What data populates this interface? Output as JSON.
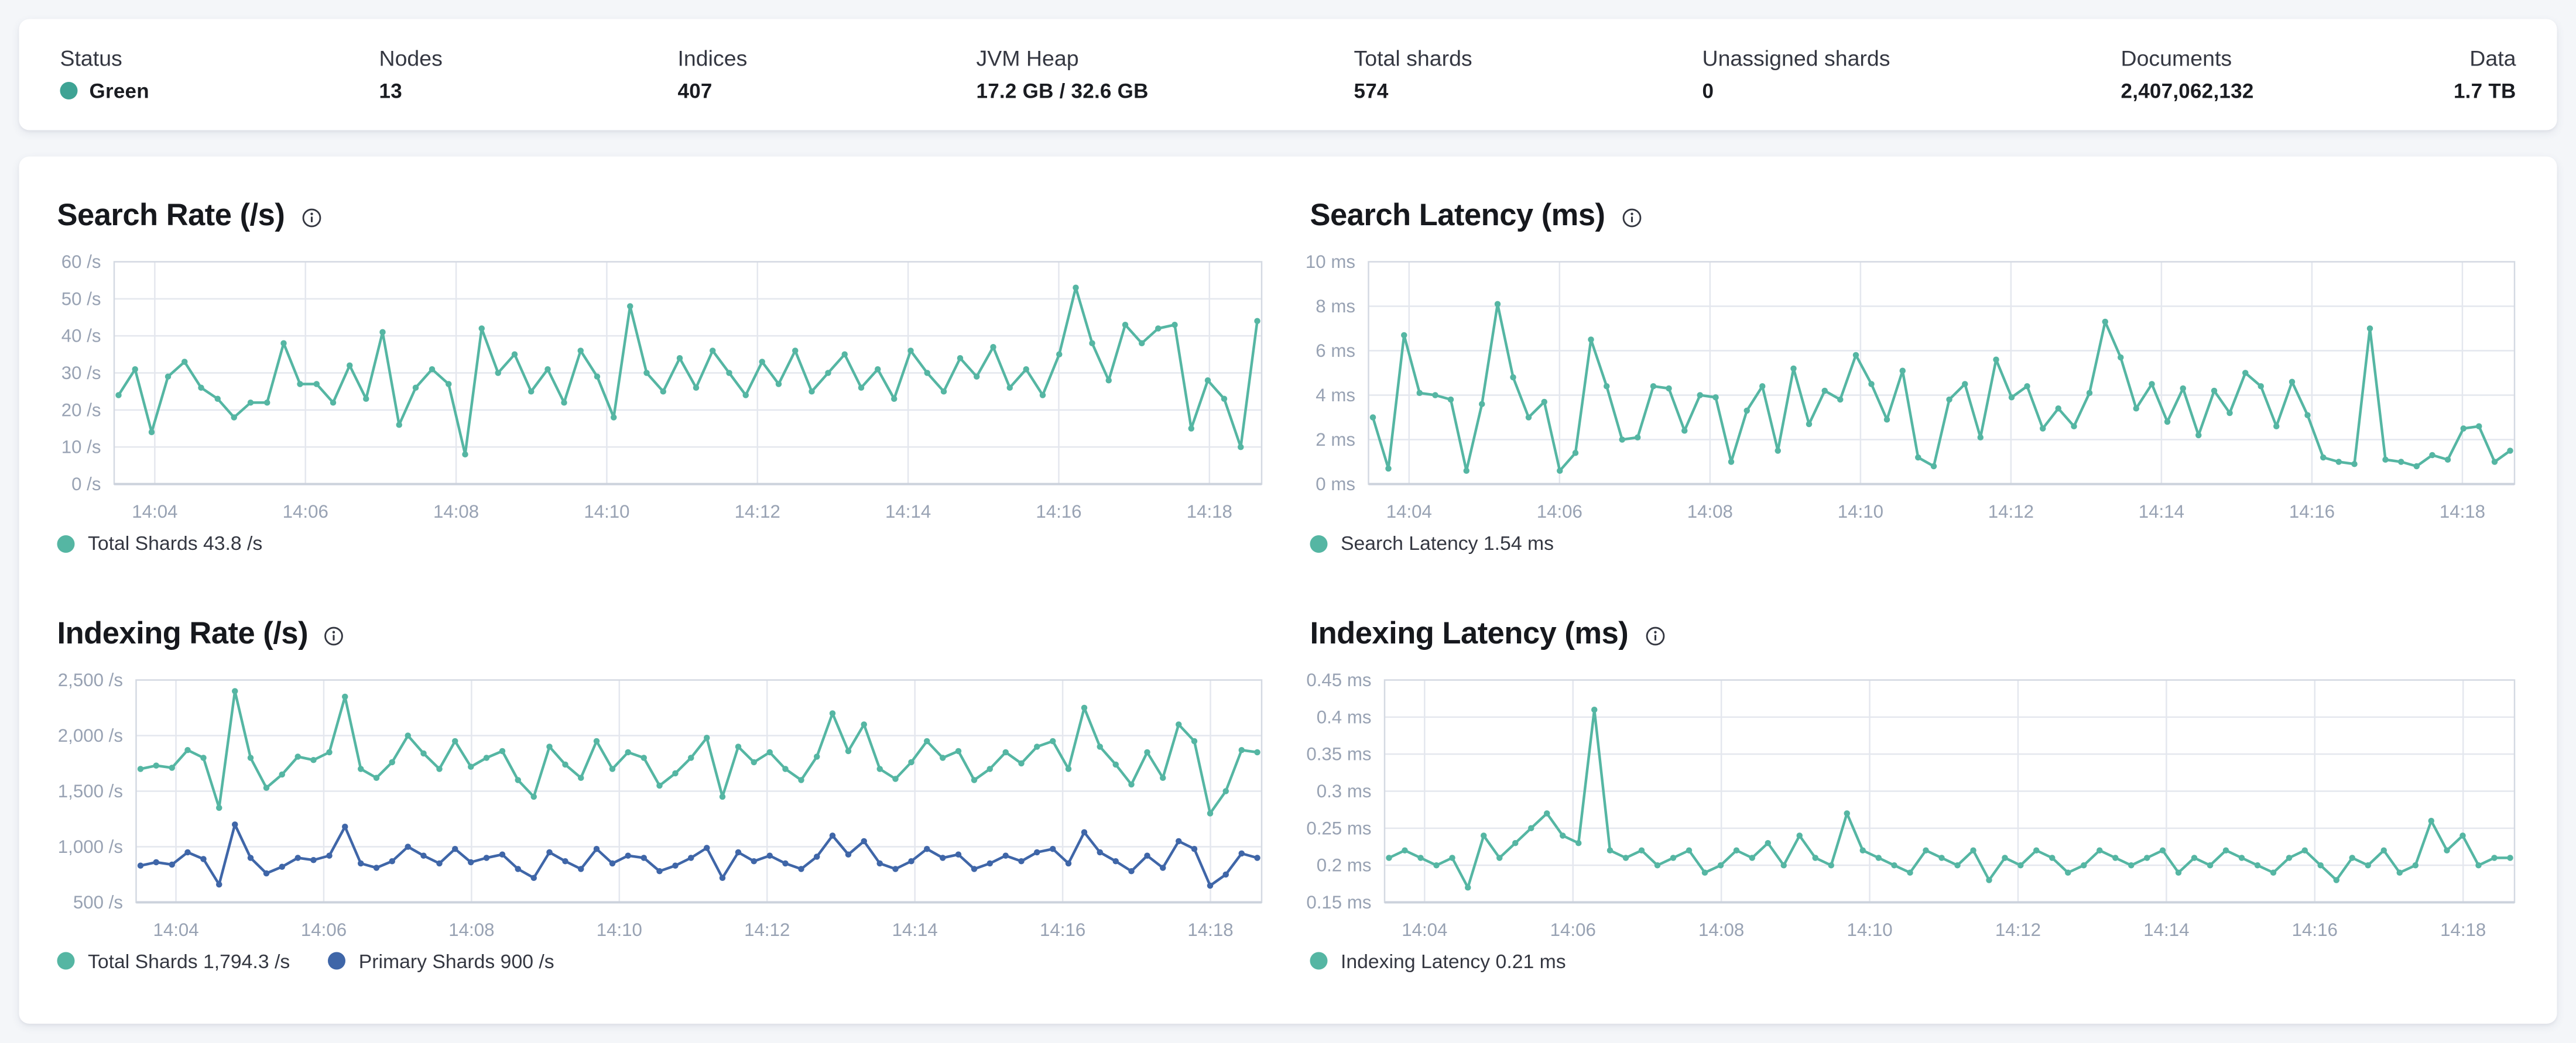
{
  "topbar": {
    "metrics": [
      {
        "label": "Status",
        "value": "Green",
        "dot_color": "#3ea394"
      },
      {
        "label": "Nodes",
        "value": "13"
      },
      {
        "label": "Indices",
        "value": "407"
      },
      {
        "label": "JVM Heap",
        "value": "17.2 GB / 32.6 GB"
      },
      {
        "label": "Total shards",
        "value": "574"
      },
      {
        "label": "Unassigned shards",
        "value": "0"
      },
      {
        "label": "Documents",
        "value": "2,407,062,132"
      },
      {
        "label": "Data",
        "value": "1.7 TB"
      }
    ]
  },
  "colors": {
    "teal": "#55b6a3",
    "blue": "#3f66a8",
    "status_green": "#3ea394",
    "grid": "#e4e7ee",
    "plot_border": "#d4d9e2",
    "axis_text": "#98a2b3"
  },
  "chart_data": [
    {
      "type": "line",
      "title": "Search Rate (/s)",
      "x_ticks": [
        "14:04",
        "14:06",
        "14:08",
        "14:10",
        "14:12",
        "14:14",
        "14:16",
        "14:18"
      ],
      "y_tick_values": [
        0,
        10,
        20,
        30,
        40,
        50,
        60
      ],
      "y_tick_labels": [
        "0 /s",
        "10 /s",
        "20 /s",
        "30 /s",
        "40 /s",
        "50 /s",
        "60 /s"
      ],
      "ymin": 0,
      "ymax": 60,
      "series": [
        {
          "name": "Total Shards",
          "color": "#55b6a3",
          "values": [
            24,
            31,
            14,
            29,
            33,
            26,
            23,
            18,
            22,
            22,
            38,
            27,
            27,
            22,
            32,
            23,
            41,
            16,
            26,
            31,
            27,
            8,
            42,
            30,
            35,
            25,
            31,
            22,
            36,
            29,
            18,
            48,
            30,
            25,
            34,
            26,
            36,
            30,
            24,
            33,
            27,
            36,
            25,
            30,
            35,
            26,
            31,
            23,
            36,
            30,
            25,
            34,
            29,
            37,
            26,
            31,
            24,
            35,
            53,
            38,
            28,
            43,
            38,
            42,
            43,
            15,
            28,
            23,
            10,
            44
          ]
        }
      ],
      "legend": [
        {
          "label": "Total Shards 43.8 /s",
          "color": "#55b6a3"
        }
      ]
    },
    {
      "type": "line",
      "title": "Search Latency (ms)",
      "x_ticks": [
        "14:04",
        "14:06",
        "14:08",
        "14:10",
        "14:12",
        "14:14",
        "14:16",
        "14:18"
      ],
      "y_tick_values": [
        0,
        2,
        4,
        6,
        8,
        10
      ],
      "y_tick_labels": [
        "0 ms",
        "2 ms",
        "4 ms",
        "6 ms",
        "8 ms",
        "10 ms"
      ],
      "ymin": 0,
      "ymax": 10,
      "series": [
        {
          "name": "Search Latency",
          "color": "#55b6a3",
          "values": [
            3,
            0.7,
            6.7,
            4.1,
            4,
            3.8,
            0.6,
            3.6,
            8.1,
            4.8,
            3,
            3.7,
            0.6,
            1.4,
            6.5,
            4.4,
            2,
            2.1,
            4.4,
            4.3,
            2.4,
            4,
            3.9,
            1,
            3.3,
            4.4,
            1.5,
            5.2,
            2.7,
            4.2,
            3.8,
            5.8,
            4.5,
            2.9,
            5.1,
            1.2,
            0.8,
            3.8,
            4.5,
            2.1,
            5.6,
            3.9,
            4.4,
            2.5,
            3.4,
            2.6,
            4.1,
            7.3,
            5.7,
            3.4,
            4.5,
            2.8,
            4.3,
            2.2,
            4.2,
            3.2,
            5,
            4.4,
            2.6,
            4.6,
            3.1,
            1.2,
            1,
            0.9,
            7,
            1.1,
            1,
            0.8,
            1.3,
            1.1,
            2.5,
            2.6,
            1,
            1.5
          ]
        }
      ],
      "legend": [
        {
          "label": "Search Latency 1.54 ms",
          "color": "#55b6a3"
        }
      ]
    },
    {
      "type": "line",
      "title": "Indexing Rate (/s)",
      "x_ticks": [
        "14:04",
        "14:06",
        "14:08",
        "14:10",
        "14:12",
        "14:14",
        "14:16",
        "14:18"
      ],
      "y_tick_values": [
        500,
        1000,
        1500,
        2000,
        2500
      ],
      "y_tick_labels": [
        "500 /s",
        "1,000 /s",
        "1,500 /s",
        "2,000 /s",
        "2,500 /s"
      ],
      "ymin": 500,
      "ymax": 2500,
      "series": [
        {
          "name": "Total Shards",
          "color": "#55b6a3",
          "values": [
            1700,
            1730,
            1710,
            1870,
            1800,
            1350,
            2400,
            1800,
            1530,
            1650,
            1810,
            1780,
            1850,
            2350,
            1700,
            1620,
            1760,
            2000,
            1840,
            1700,
            1950,
            1720,
            1800,
            1860,
            1600,
            1450,
            1900,
            1740,
            1620,
            1950,
            1700,
            1850,
            1800,
            1550,
            1660,
            1800,
            1980,
            1450,
            1900,
            1760,
            1850,
            1700,
            1600,
            1810,
            2200,
            1860,
            2100,
            1700,
            1610,
            1760,
            1950,
            1800,
            1860,
            1600,
            1700,
            1850,
            1750,
            1900,
            1950,
            1700,
            2250,
            1900,
            1740,
            1560,
            1850,
            1620,
            2100,
            1950,
            1300,
            1500,
            1870,
            1850
          ]
        },
        {
          "name": "Primary Shards",
          "color": "#3f66a8",
          "values": [
            830,
            860,
            840,
            950,
            890,
            660,
            1200,
            900,
            760,
            820,
            900,
            880,
            920,
            1180,
            850,
            810,
            870,
            1000,
            920,
            850,
            980,
            860,
            900,
            930,
            800,
            720,
            950,
            870,
            800,
            980,
            850,
            920,
            900,
            780,
            830,
            900,
            990,
            720,
            950,
            870,
            920,
            850,
            800,
            910,
            1100,
            930,
            1050,
            850,
            800,
            870,
            980,
            900,
            930,
            800,
            850,
            920,
            870,
            950,
            980,
            850,
            1130,
            950,
            870,
            780,
            920,
            810,
            1050,
            980,
            650,
            750,
            940,
            900
          ]
        }
      ],
      "legend": [
        {
          "label": "Total Shards 1,794.3 /s",
          "color": "#55b6a3"
        },
        {
          "label": "Primary Shards 900 /s",
          "color": "#3f66a8"
        }
      ]
    },
    {
      "type": "line",
      "title": "Indexing Latency (ms)",
      "x_ticks": [
        "14:04",
        "14:06",
        "14:08",
        "14:10",
        "14:12",
        "14:14",
        "14:16",
        "14:18"
      ],
      "y_tick_values": [
        0.15,
        0.2,
        0.25,
        0.3,
        0.35,
        0.4,
        0.45
      ],
      "y_tick_labels": [
        "0.15 ms",
        "0.2 ms",
        "0.25 ms",
        "0.3 ms",
        "0.35 ms",
        "0.4 ms",
        "0.45 ms"
      ],
      "ymin": 0.15,
      "ymax": 0.45,
      "series": [
        {
          "name": "Indexing Latency",
          "color": "#55b6a3",
          "values": [
            0.21,
            0.22,
            0.21,
            0.2,
            0.21,
            0.17,
            0.24,
            0.21,
            0.23,
            0.25,
            0.27,
            0.24,
            0.23,
            0.41,
            0.22,
            0.21,
            0.22,
            0.2,
            0.21,
            0.22,
            0.19,
            0.2,
            0.22,
            0.21,
            0.23,
            0.2,
            0.24,
            0.21,
            0.2,
            0.27,
            0.22,
            0.21,
            0.2,
            0.19,
            0.22,
            0.21,
            0.2,
            0.22,
            0.18,
            0.21,
            0.2,
            0.22,
            0.21,
            0.19,
            0.2,
            0.22,
            0.21,
            0.2,
            0.21,
            0.22,
            0.19,
            0.21,
            0.2,
            0.22,
            0.21,
            0.2,
            0.19,
            0.21,
            0.22,
            0.2,
            0.18,
            0.21,
            0.2,
            0.22,
            0.19,
            0.2,
            0.26,
            0.22,
            0.24,
            0.2,
            0.21,
            0.21
          ]
        }
      ],
      "legend": [
        {
          "label": "Indexing Latency 0.21 ms",
          "color": "#55b6a3"
        }
      ]
    }
  ]
}
